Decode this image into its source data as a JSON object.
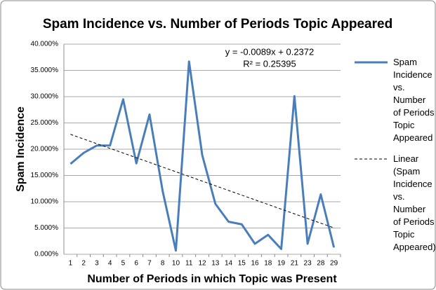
{
  "chart_data": {
    "type": "line",
    "title": "Spam Incidence vs. Number of Periods Topic Appeared",
    "x_label": "Number of Periods in which Topic was Present",
    "y_label": "Spam Incidence",
    "annotations": [
      "y = -0.0089x + 0.2372",
      "R² = 0.25395"
    ],
    "categories": [
      "1",
      "2",
      "3",
      "4",
      "5",
      "6",
      "7",
      "8",
      "10",
      "11",
      "12",
      "13",
      "14",
      "15",
      "16",
      "18",
      "19",
      "21",
      "23",
      "28",
      "29"
    ],
    "series": [
      {
        "name": "Spam Incidence vs. Number of Periods Topic Appeared",
        "color": "#4a7ebb",
        "style": "solid",
        "values": [
          17.2,
          19.3,
          20.7,
          20.7,
          29.5,
          17.3,
          26.6,
          12.0,
          0.7,
          36.7,
          18.9,
          9.6,
          6.2,
          5.7,
          2.0,
          3.7,
          1.0,
          30.1,
          2.0,
          11.4,
          1.3
        ]
      },
      {
        "name": "Linear (Spam Incidence vs. Number of Periods Topic Appeared)",
        "color": "#000000",
        "style": "dashed",
        "values": [
          22.83,
          21.94,
          21.05,
          20.16,
          19.27,
          18.38,
          17.49,
          16.6,
          15.71,
          14.82,
          13.93,
          13.04,
          12.15,
          11.26,
          10.37,
          9.48,
          8.59,
          7.7,
          6.81,
          5.92,
          5.03
        ]
      }
    ],
    "ylim": [
      0,
      40
    ],
    "yticks": [
      {
        "value": 0,
        "label": "0.000%"
      },
      {
        "value": 5,
        "label": "5.000%"
      },
      {
        "value": 10,
        "label": "10.000%"
      },
      {
        "value": 15,
        "label": "15.000%"
      },
      {
        "value": 20,
        "label": "20.000%"
      },
      {
        "value": 25,
        "label": "25.000%"
      },
      {
        "value": 30,
        "label": "30.000%"
      },
      {
        "value": 35,
        "label": "35.000%"
      },
      {
        "value": 40,
        "label": "40.000%"
      }
    ],
    "grid": true,
    "legend": "right"
  }
}
